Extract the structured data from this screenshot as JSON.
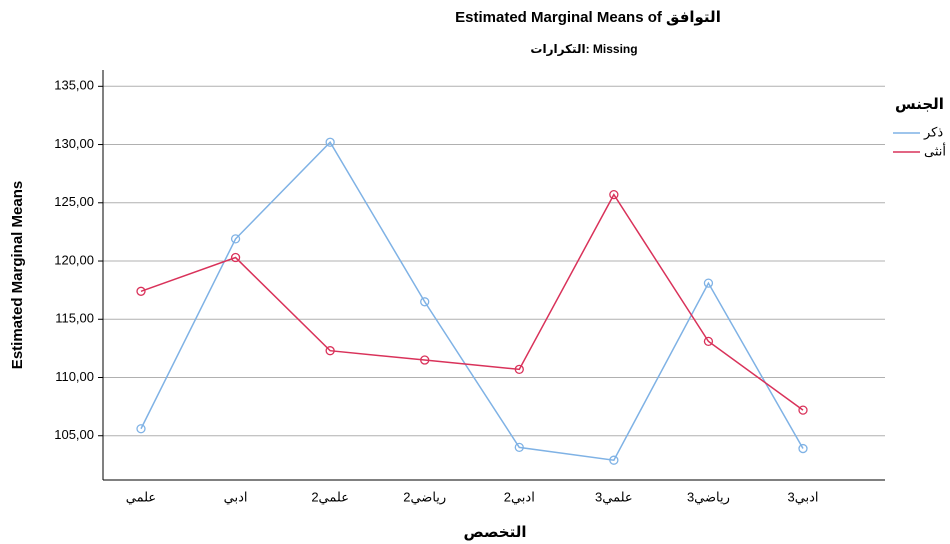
{
  "chart_data": {
    "type": "line",
    "title": "Estimated Marginal Means of التوافق",
    "subtitle": "التكرارات: Missing",
    "x_label": "التخصص",
    "y_label": "Estimated Marginal Means",
    "legend_title": "الجنس",
    "legend_position": "right",
    "grid": true,
    "categories": [
      "علمي",
      "ادبي",
      "علمي2",
      "رياضي2",
      "ادبي2",
      "علمي3",
      "رياضي3",
      "ادبي3"
    ],
    "series": [
      {
        "name": "ذكر",
        "color": "#7fb2e5",
        "values": [
          105.6,
          121.9,
          130.2,
          116.5,
          104.0,
          102.9,
          118.1,
          103.9
        ]
      },
      {
        "name": "أنثى",
        "color": "#d9325a",
        "values": [
          117.4,
          120.3,
          112.3,
          111.5,
          110.7,
          125.7,
          113.1,
          107.2
        ]
      }
    ],
    "ylim": [
      101.2,
      136.4
    ],
    "yticks": [
      {
        "value": 105,
        "label": "105,00"
      },
      {
        "value": 110,
        "label": "110,00"
      },
      {
        "value": 115,
        "label": "115,00"
      },
      {
        "value": 120,
        "label": "120,00"
      },
      {
        "value": 125,
        "label": "125,00"
      },
      {
        "value": 130,
        "label": "130,00"
      },
      {
        "value": 135,
        "label": "135,00"
      }
    ]
  }
}
